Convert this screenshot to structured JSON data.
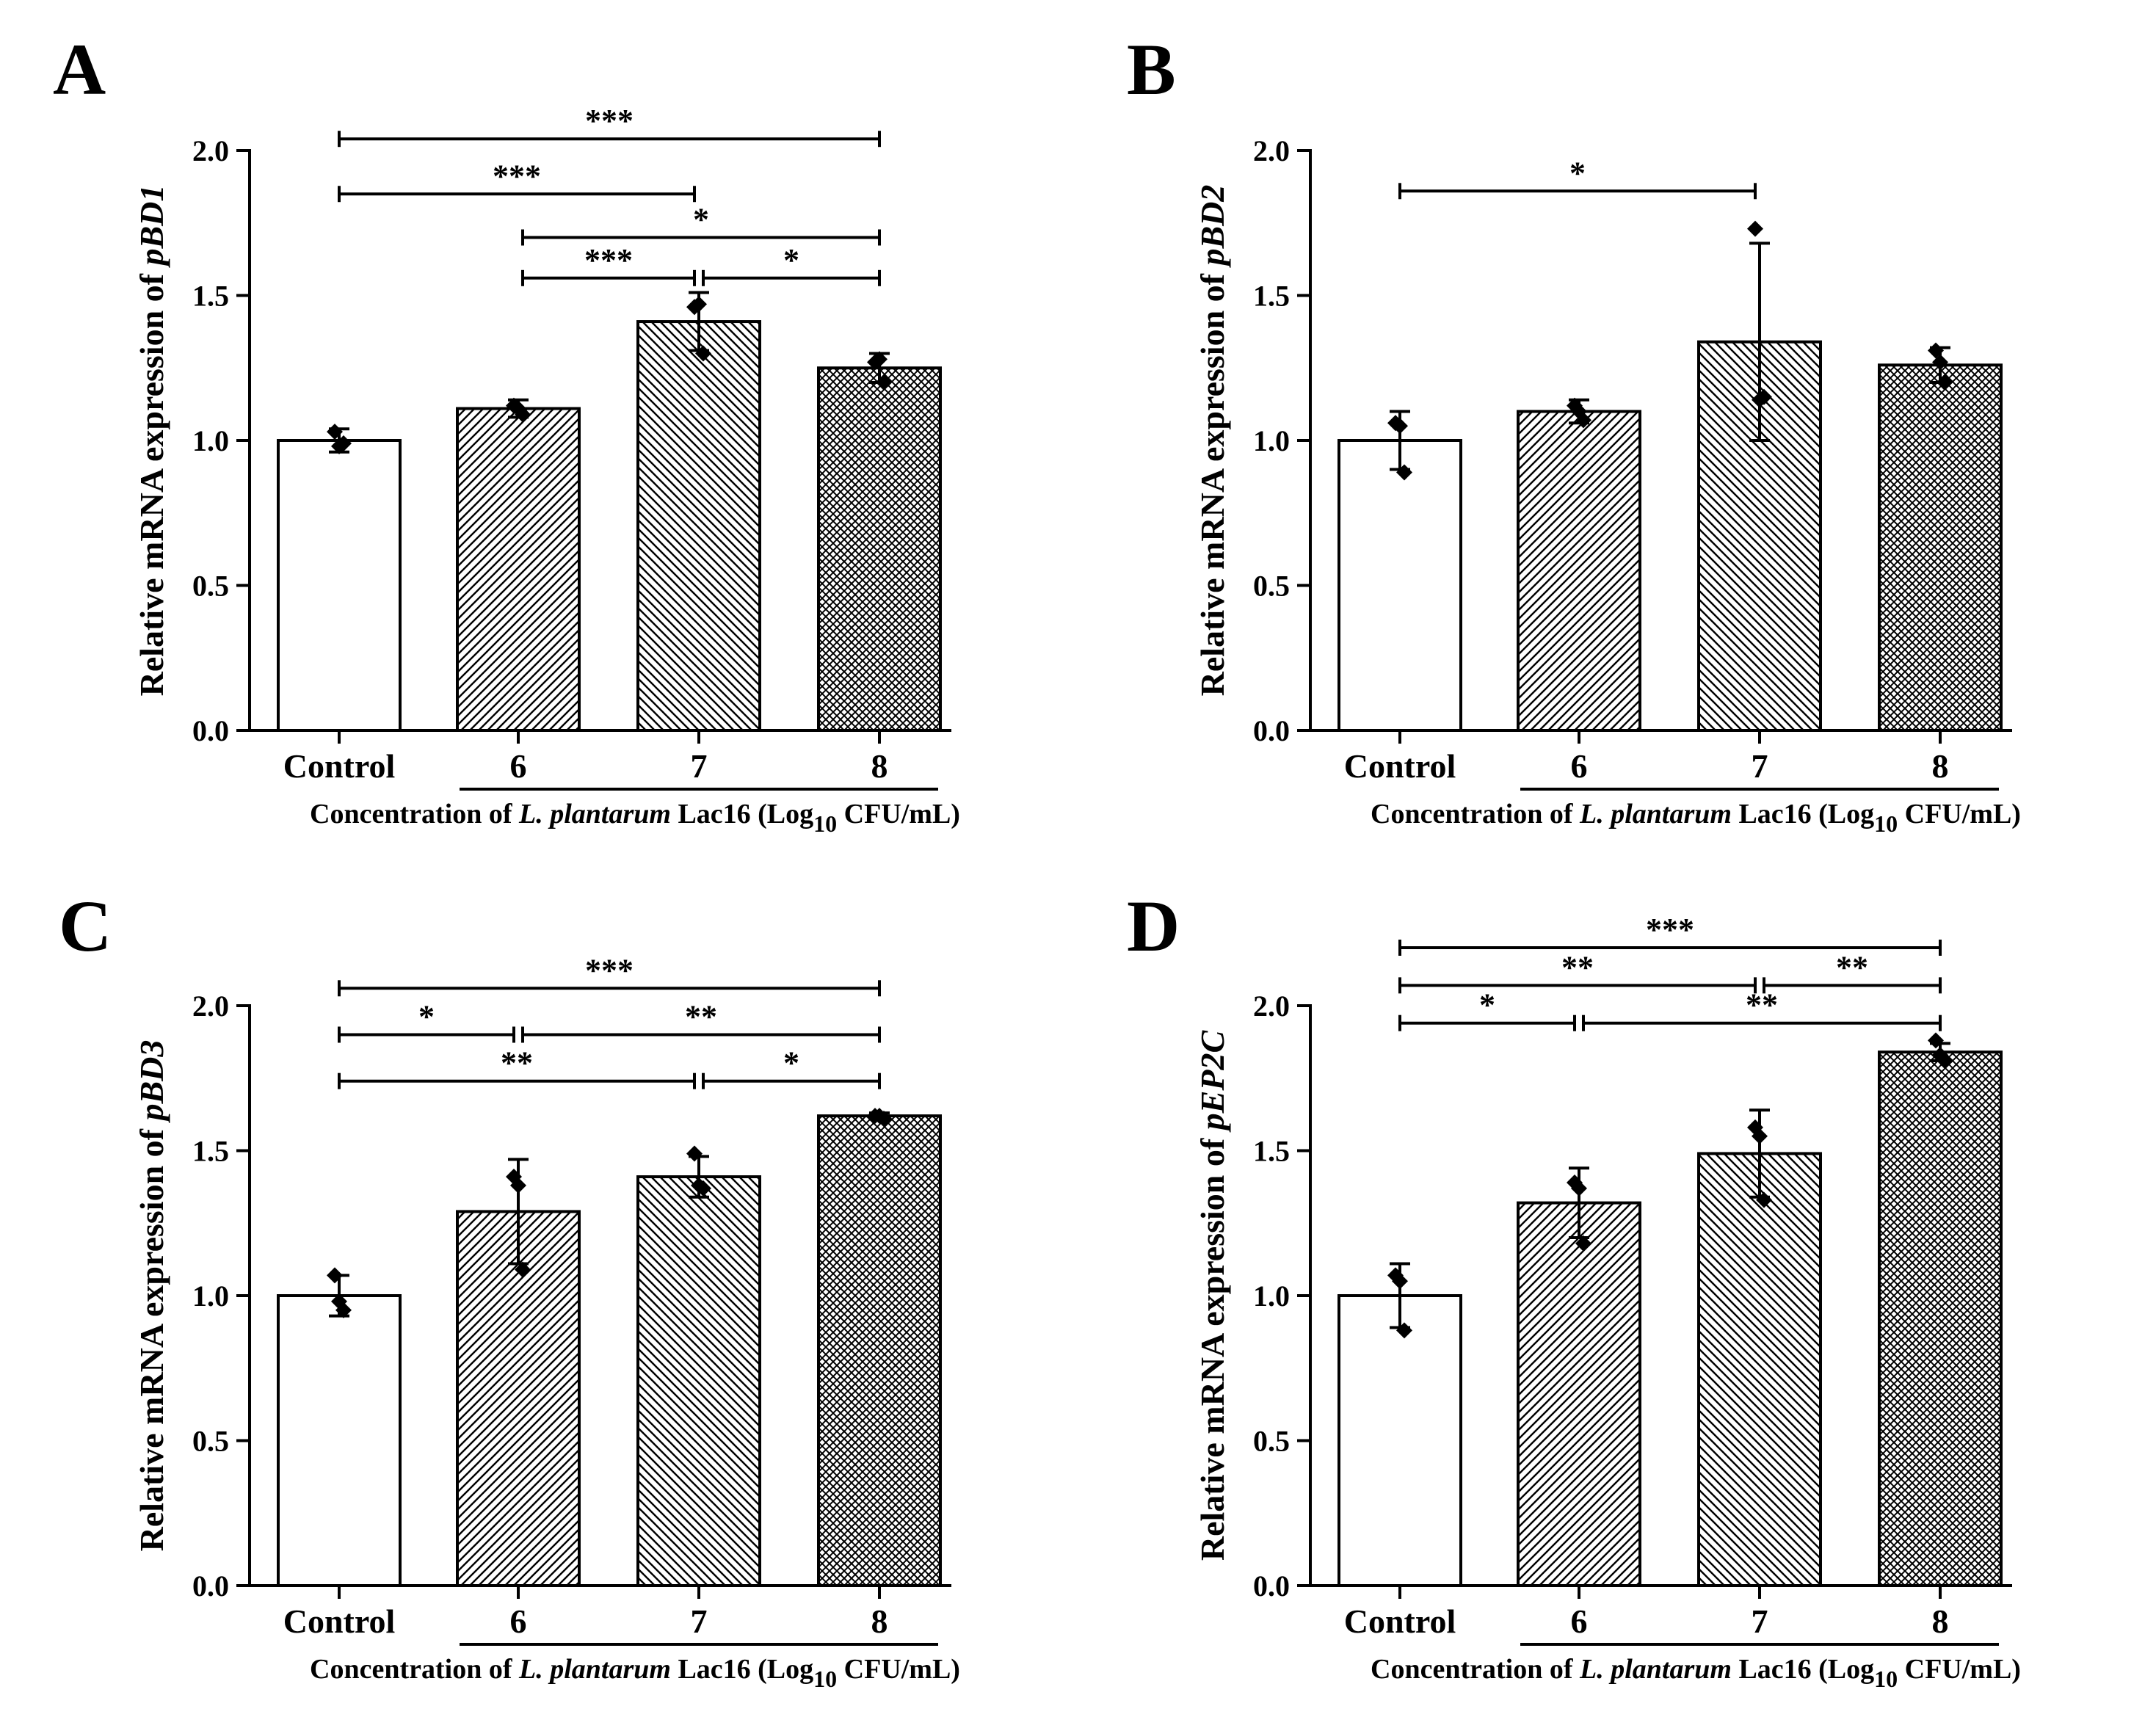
{
  "chart_data": [
    {
      "panel": "A",
      "type": "bar",
      "ylabel_prefix": "Relative mRNA expression of ",
      "gene": "pBD1",
      "xlabel_parts": [
        "Concentration of ",
        "L. plantarum",
        " Lac16 (Log",
        "10",
        " CFU/mL)"
      ],
      "categories": [
        "Control",
        "6",
        "7",
        "8"
      ],
      "values": [
        1.0,
        1.11,
        1.41,
        1.25
      ],
      "errors": [
        0.04,
        0.03,
        0.1,
        0.05
      ],
      "points": [
        [
          1.03,
          0.99,
          0.98
        ],
        [
          1.12,
          1.09,
          1.11
        ],
        [
          1.46,
          1.3,
          1.47
        ],
        [
          1.27,
          1.2,
          1.28
        ]
      ],
      "patterns": [
        "none",
        "diag-right",
        "diag-left",
        "cross"
      ],
      "ylim": [
        0,
        2.0
      ],
      "yticks": [
        "0.0",
        "0.5",
        "1.0",
        "1.5",
        "2.0"
      ],
      "significance": [
        {
          "from": 0,
          "to": 3,
          "y": 2.04,
          "label": "***"
        },
        {
          "from": 0,
          "to": 2,
          "y": 1.85,
          "label": "***"
        },
        {
          "from": 1,
          "to": 3,
          "y": 1.7,
          "label": "*"
        },
        {
          "from": 1,
          "to": 2,
          "y": 1.56,
          "label": "***"
        },
        {
          "from": 2,
          "to": 3,
          "y": 1.56,
          "label": "*"
        }
      ]
    },
    {
      "panel": "B",
      "type": "bar",
      "ylabel_prefix": "Relative mRNA expression of ",
      "gene": "pBD2",
      "xlabel_parts": [
        "Concentration of ",
        "L. plantarum",
        " Lac16 (Log",
        "10",
        " CFU/mL)"
      ],
      "categories": [
        "Control",
        "6",
        "7",
        "8"
      ],
      "values": [
        1.0,
        1.1,
        1.34,
        1.26
      ],
      "errors": [
        0.1,
        0.04,
        0.34,
        0.06
      ],
      "points": [
        [
          1.06,
          0.89,
          1.05
        ],
        [
          1.12,
          1.07,
          1.1
        ],
        [
          1.73,
          1.15,
          1.14
        ],
        [
          1.31,
          1.2,
          1.27
        ]
      ],
      "patterns": [
        "none",
        "diag-right",
        "diag-left",
        "cross"
      ],
      "ylim": [
        0,
        2.0
      ],
      "yticks": [
        "0.0",
        "0.5",
        "1.0",
        "1.5",
        "2.0"
      ],
      "significance": [
        {
          "from": 0,
          "to": 2,
          "y": 1.86,
          "label": "*"
        }
      ]
    },
    {
      "panel": "C",
      "type": "bar",
      "ylabel_prefix": "Relative mRNA expression of ",
      "gene": "pBD3",
      "xlabel_parts": [
        "Concentration of ",
        "L. plantarum",
        " Lac16 (Log",
        "10",
        " CFU/mL)"
      ],
      "categories": [
        "Control",
        "6",
        "7",
        "8"
      ],
      "values": [
        1.0,
        1.29,
        1.41,
        1.62
      ],
      "errors": [
        0.07,
        0.18,
        0.07,
        0.01
      ],
      "points": [
        [
          1.07,
          0.95,
          0.98
        ],
        [
          1.41,
          1.09,
          1.38
        ],
        [
          1.49,
          1.37,
          1.38
        ],
        [
          1.62,
          1.61,
          1.62
        ]
      ],
      "patterns": [
        "none",
        "diag-right",
        "diag-left",
        "cross"
      ],
      "ylim": [
        0,
        2.0
      ],
      "yticks": [
        "0.0",
        "0.5",
        "1.0",
        "1.5",
        "2.0"
      ],
      "significance": [
        {
          "from": 0,
          "to": 3,
          "y": 2.06,
          "label": "***"
        },
        {
          "from": 0,
          "to": 1,
          "y": 1.9,
          "label": "*"
        },
        {
          "from": 1,
          "to": 3,
          "y": 1.9,
          "label": "**"
        },
        {
          "from": 0,
          "to": 2,
          "y": 1.74,
          "label": "**"
        },
        {
          "from": 2,
          "to": 3,
          "y": 1.74,
          "label": "*"
        }
      ]
    },
    {
      "panel": "D",
      "type": "bar",
      "ylabel_prefix": "Relative mRNA expression of ",
      "gene": "pEP2C",
      "xlabel_parts": [
        "Concentration of ",
        "L. plantarum",
        " Lac16 (Log",
        "10",
        " CFU/mL)"
      ],
      "categories": [
        "Control",
        "6",
        "7",
        "8"
      ],
      "values": [
        1.0,
        1.32,
        1.49,
        1.84
      ],
      "errors": [
        0.11,
        0.12,
        0.15,
        0.03
      ],
      "points": [
        [
          1.07,
          0.88,
          1.05
        ],
        [
          1.39,
          1.18,
          1.37
        ],
        [
          1.58,
          1.33,
          1.55
        ],
        [
          1.88,
          1.81,
          1.83
        ]
      ],
      "patterns": [
        "none",
        "diag-right",
        "diag-left",
        "cross"
      ],
      "ylim": [
        0,
        2.0
      ],
      "yticks": [
        "0.0",
        "0.5",
        "1.0",
        "1.5",
        "2.0"
      ],
      "significance": [
        {
          "from": 0,
          "to": 3,
          "y": 2.2,
          "label": "***"
        },
        {
          "from": 0,
          "to": 2,
          "y": 2.07,
          "label": "**"
        },
        {
          "from": 2,
          "to": 3,
          "y": 2.07,
          "label": "**"
        },
        {
          "from": 0,
          "to": 1,
          "y": 1.94,
          "label": "*"
        },
        {
          "from": 1,
          "to": 3,
          "y": 1.94,
          "label": "**"
        }
      ]
    }
  ]
}
